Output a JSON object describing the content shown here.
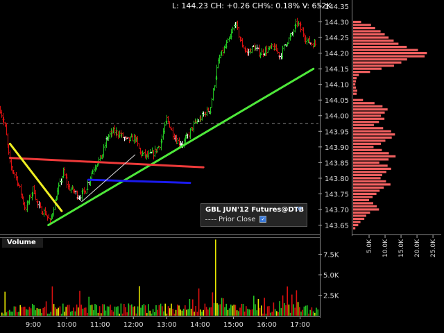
{
  "quote_line": "L: 144.23 CH: +0.26 CH%: 0.18% V: 652K",
  "volume_label": "Volume",
  "legend": {
    "title": "GBL JUN'12 Futures@DTB",
    "prior_close_label": "Prior Close",
    "wrench_icon": "wrench-icon",
    "checkbox_icon": "checkbox-checked-icon"
  },
  "colors": {
    "up": "#22c422",
    "down": "#d81010",
    "flat": "#ffffff",
    "vol_yellow": "#e6e600",
    "profile": "#f06060",
    "trend_green": "#4ee83a",
    "trend_red": "#ee3a3a",
    "trend_blue": "#1a1aee",
    "trend_yellow": "#eeee22",
    "trend_white": "#dddddd"
  },
  "chart_data": [
    {
      "type": "ohlc",
      "ylim": [
        143.62,
        144.37
      ],
      "y_ticks": [
        "144.35",
        "144.30",
        "144.25",
        "144.20",
        "144.15",
        "144.10",
        "144.05",
        "144.00",
        "143.95",
        "143.90",
        "143.85",
        "143.80",
        "143.75",
        "143.70",
        "143.65"
      ],
      "x_ticks": [
        "9:00",
        "10:00",
        "11:00",
        "12:00",
        "13:00",
        "14:00",
        "15:00",
        "16:00",
        "17:00"
      ],
      "x_tick_hours": [
        9,
        10,
        11,
        12,
        13,
        14,
        15,
        16,
        17
      ],
      "x_range_hours": [
        8.0,
        17.55
      ],
      "prior_close": 143.975,
      "price_path": [
        [
          8.0,
          144.02
        ],
        [
          8.15,
          143.96
        ],
        [
          8.3,
          143.84
        ],
        [
          8.45,
          143.81
        ],
        [
          8.6,
          143.76
        ],
        [
          8.75,
          143.7
        ],
        [
          8.9,
          143.74
        ],
        [
          9.0,
          143.77
        ],
        [
          9.1,
          143.72
        ],
        [
          9.2,
          143.7
        ],
        [
          9.35,
          143.69
        ],
        [
          9.5,
          143.66
        ],
        [
          9.7,
          143.75
        ],
        [
          9.9,
          143.82
        ],
        [
          10.05,
          143.77
        ],
        [
          10.2,
          143.76
        ],
        [
          10.35,
          143.74
        ],
        [
          10.55,
          143.76
        ],
        [
          10.75,
          143.82
        ],
        [
          10.9,
          143.85
        ],
        [
          11.05,
          143.87
        ],
        [
          11.2,
          143.93
        ],
        [
          11.4,
          143.95
        ],
        [
          11.6,
          143.94
        ],
        [
          11.8,
          143.92
        ],
        [
          12.05,
          143.93
        ],
        [
          12.2,
          143.88
        ],
        [
          12.4,
          143.87
        ],
        [
          12.6,
          143.88
        ],
        [
          12.8,
          143.91
        ],
        [
          13.0,
          143.99
        ],
        [
          13.15,
          143.95
        ],
        [
          13.3,
          143.92
        ],
        [
          13.45,
          143.91
        ],
        [
          13.6,
          143.93
        ],
        [
          13.8,
          143.97
        ],
        [
          14.0,
          143.99
        ],
        [
          14.15,
          144.01
        ],
        [
          14.3,
          144.02
        ],
        [
          14.45,
          144.12
        ],
        [
          14.55,
          144.18
        ],
        [
          14.7,
          144.21
        ],
        [
          14.9,
          144.25
        ],
        [
          15.05,
          144.3
        ],
        [
          15.2,
          144.24
        ],
        [
          15.4,
          144.2
        ],
        [
          15.6,
          144.22
        ],
        [
          15.8,
          144.2
        ],
        [
          16.0,
          144.21
        ],
        [
          16.2,
          144.22
        ],
        [
          16.4,
          144.19
        ],
        [
          16.55,
          144.23
        ],
        [
          16.75,
          144.26
        ],
        [
          16.9,
          144.3
        ],
        [
          17.05,
          144.27
        ],
        [
          17.2,
          144.24
        ],
        [
          17.35,
          144.23
        ],
        [
          17.5,
          144.23
        ]
      ]
    },
    {
      "type": "bar",
      "name": "Volume",
      "y_ticks": [
        "7.5K",
        "5.0K",
        "2.5K"
      ],
      "y_tick_values": [
        7500,
        5000,
        2500
      ],
      "ylim": [
        0,
        9500
      ],
      "spike_hours": [
        14.45
      ],
      "spike_value": 9300
    },
    {
      "type": "bar",
      "orientation": "horizontal",
      "name": "Volume profile",
      "x_ticks": [
        "5.0K",
        "10.0K",
        "15.0K",
        "20.0K",
        "25.0K"
      ],
      "x_tick_values": [
        5000,
        10000,
        15000,
        20000,
        25000
      ],
      "xlim": [
        0,
        26500
      ],
      "levels": [
        [
          144.3,
          2500
        ],
        [
          144.29,
          5600
        ],
        [
          144.28,
          6900
        ],
        [
          144.27,
          8600
        ],
        [
          144.26,
          9900
        ],
        [
          144.25,
          11100
        ],
        [
          144.24,
          12700
        ],
        [
          144.23,
          14200
        ],
        [
          144.22,
          16800
        ],
        [
          144.21,
          20300
        ],
        [
          144.2,
          23100
        ],
        [
          144.19,
          22400
        ],
        [
          144.18,
          16900
        ],
        [
          144.17,
          15100
        ],
        [
          144.16,
          12800
        ],
        [
          144.15,
          8900
        ],
        [
          144.14,
          5300
        ],
        [
          144.13,
          1800
        ],
        [
          144.12,
          1100
        ],
        [
          144.11,
          900
        ],
        [
          144.1,
          700
        ],
        [
          144.09,
          900
        ],
        [
          144.08,
          1300
        ],
        [
          144.07,
          1100
        ],
        [
          144.05,
          3100
        ],
        [
          144.04,
          6700
        ],
        [
          144.03,
          9200
        ],
        [
          144.02,
          10800
        ],
        [
          144.01,
          9900
        ],
        [
          144.0,
          8700
        ],
        [
          143.99,
          9800
        ],
        [
          143.98,
          8100
        ],
        [
          143.97,
          6500
        ],
        [
          143.96,
          9400
        ],
        [
          143.95,
          11900
        ],
        [
          143.94,
          13100
        ],
        [
          143.93,
          12100
        ],
        [
          143.92,
          10100
        ],
        [
          143.91,
          8700
        ],
        [
          143.9,
          6400
        ],
        [
          143.89,
          9000
        ],
        [
          143.88,
          11200
        ],
        [
          143.87,
          13300
        ],
        [
          143.86,
          11100
        ],
        [
          143.85,
          8200
        ],
        [
          143.84,
          10800
        ],
        [
          143.83,
          11900
        ],
        [
          143.82,
          10400
        ],
        [
          143.81,
          9100
        ],
        [
          143.8,
          8600
        ],
        [
          143.79,
          10300
        ],
        [
          143.78,
          11700
        ],
        [
          143.77,
          9600
        ],
        [
          143.76,
          8300
        ],
        [
          143.75,
          7300
        ],
        [
          143.74,
          6100
        ],
        [
          143.73,
          5000
        ],
        [
          143.72,
          6300
        ],
        [
          143.71,
          7400
        ],
        [
          143.7,
          8100
        ],
        [
          143.69,
          5300
        ],
        [
          143.68,
          4100
        ],
        [
          143.67,
          3500
        ],
        [
          143.66,
          2300
        ],
        [
          143.65,
          1600
        ],
        [
          143.64,
          700
        ]
      ]
    }
  ],
  "trendlines": [
    {
      "name": "green-trendline",
      "color_key": "trend_green",
      "from": [
        9.45,
        143.65
      ],
      "to": [
        17.4,
        144.15
      ]
    },
    {
      "name": "red-trendline",
      "color_key": "trend_red",
      "from": [
        8.3,
        143.865
      ],
      "to": [
        14.1,
        143.835
      ]
    },
    {
      "name": "blue-trendline",
      "color_key": "trend_blue",
      "from": [
        10.65,
        143.795
      ],
      "to": [
        13.7,
        143.785
      ]
    },
    {
      "name": "yellow-trendline",
      "color_key": "trend_yellow",
      "from": [
        8.3,
        143.91
      ],
      "to": [
        9.85,
        143.695
      ]
    },
    {
      "name": "white-trendline",
      "color_key": "trend_white",
      "from": [
        10.45,
        143.725
      ],
      "to": [
        12.05,
        143.875
      ]
    }
  ]
}
